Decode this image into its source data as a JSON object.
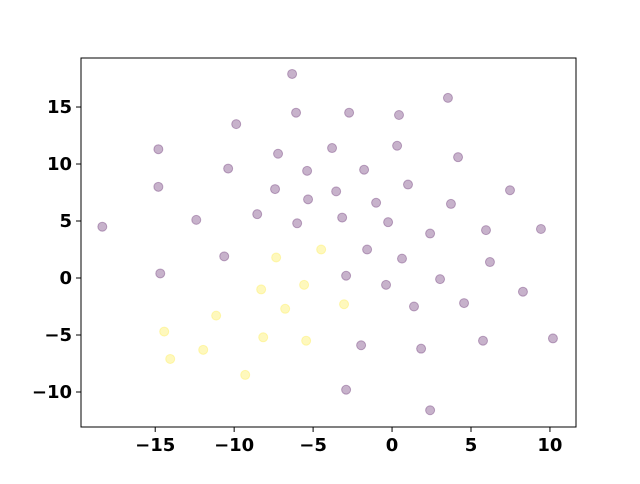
{
  "chart_data": {
    "type": "scatter",
    "xlim": [
      -19.7,
      11.65
    ],
    "ylim": [
      -13.07,
      19.3
    ],
    "xticks": [
      {
        "value": -15,
        "label": "−15"
      },
      {
        "value": -10,
        "label": "−10"
      },
      {
        "value": -5,
        "label": "−5"
      },
      0,
      5,
      10
    ],
    "yticks": [
      {
        "value": -10,
        "label": "−10"
      },
      {
        "value": -5,
        "label": "−5"
      },
      0,
      5,
      10,
      15
    ],
    "series": [
      {
        "color": "#440154",
        "x": [
          -6.33,
          3.54,
          -6.08,
          -2.72,
          0.44,
          -9.87,
          -14.8,
          -3.8,
          0.32,
          -7.22,
          4.18,
          -10.38,
          -5.38,
          -1.77,
          -14.8,
          -7.41,
          1.01,
          7.47,
          -3.54,
          -5.32,
          -1.01,
          3.73,
          -8.54,
          -3.16,
          -12.4,
          -6.01,
          -0.25,
          -18.35,
          2.41,
          5.95,
          9.43,
          -1.58,
          -10.63,
          0.63,
          6.2,
          -14.68,
          -2.91,
          3.04,
          -0.38,
          8.29,
          4.56,
          1.39,
          5.76,
          10.19,
          -1.96,
          1.84,
          -2.91,
          2.41
        ],
        "y": [
          17.9,
          15.8,
          14.5,
          14.5,
          14.3,
          13.5,
          11.3,
          11.4,
          11.6,
          10.9,
          10.6,
          9.6,
          9.4,
          9.5,
          8.0,
          7.8,
          8.2,
          7.7,
          7.6,
          6.9,
          6.6,
          6.5,
          5.6,
          5.3,
          5.1,
          4.8,
          4.9,
          4.5,
          3.9,
          4.2,
          4.3,
          2.5,
          1.9,
          1.7,
          1.4,
          0.4,
          0.2,
          -0.1,
          -0.6,
          -1.2,
          -2.2,
          -2.5,
          -5.5,
          -5.3,
          -5.9,
          -6.2,
          -9.8,
          -11.6
        ]
      },
      {
        "color": "#fde725",
        "x": [
          -4.49,
          -7.34,
          -8.29,
          -5.57,
          -3.04,
          -6.77,
          -11.14,
          -14.43,
          -8.16,
          -5.44,
          -11.96,
          -14.05,
          -9.3
        ],
        "y": [
          2.5,
          1.8,
          -1.0,
          -0.6,
          -2.3,
          -2.7,
          -3.3,
          -4.7,
          -5.2,
          -5.5,
          -6.3,
          -7.1,
          -8.5
        ]
      }
    ]
  }
}
